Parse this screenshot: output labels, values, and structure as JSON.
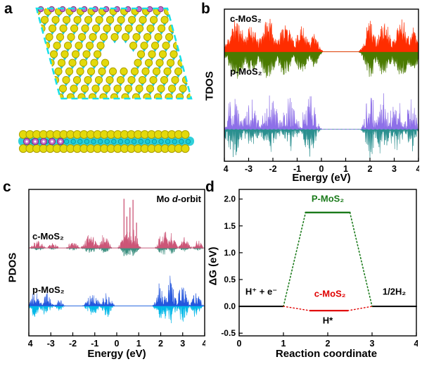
{
  "figure": {
    "panel_labels": {
      "a": "a",
      "b": "b",
      "c": "c",
      "d": "d"
    }
  },
  "structure": {
    "colors": {
      "sulfur": "#e3d90b",
      "sulfur_edge": "#ada000",
      "mo": "#19cbd6",
      "mo_edge": "#0a8a96",
      "dopant": "#c36bc9",
      "dopant_edge": "#7a2e7a",
      "highlight": "#19e0e8"
    }
  },
  "chart_data": [
    {
      "id": "tdos",
      "type": "area",
      "ylabel": "TDOS",
      "xlabel": "Energy (eV)",
      "xlim": [
        -4,
        4
      ],
      "xticks": [
        -4,
        -3,
        -2,
        -1,
        0,
        1,
        2,
        3,
        4
      ],
      "band_gap_eV": [
        0.1,
        1.8
      ],
      "series": [
        {
          "name": "c-MoS₂",
          "baseline_frac": 0.28,
          "up_color": "#ff2d00",
          "down_color": "#4a7a00",
          "up_amp": 52,
          "down_amp": 44,
          "floor": 0.3,
          "sparse": 1.3,
          "seed": 11,
          "baseline_dash": null,
          "clusters": [
            {
              "c": -3.5,
              "w": 0.55,
              "h": 0.9
            },
            {
              "c": -2.9,
              "w": 0.45,
              "h": 0.75
            },
            {
              "c": -2.2,
              "w": 0.5,
              "h": 0.95
            },
            {
              "c": -1.5,
              "w": 0.5,
              "h": 0.8
            },
            {
              "c": -0.8,
              "w": 0.45,
              "h": 0.7
            },
            {
              "c": -0.3,
              "w": 0.3,
              "h": 0.5
            },
            {
              "c": 2.0,
              "w": 0.35,
              "h": 0.9
            },
            {
              "c": 2.6,
              "w": 0.45,
              "h": 0.85
            },
            {
              "c": 3.3,
              "w": 0.5,
              "h": 0.9
            },
            {
              "c": 3.8,
              "w": 0.3,
              "h": 0.7
            }
          ]
        },
        {
          "name": "p-MoS₂",
          "baseline_frac": 0.79,
          "up_color": "#8d6fe8",
          "down_color": "#2a8f8f",
          "up_amp": 62,
          "down_amp": 42,
          "floor": 0.07,
          "sparse": 2.6,
          "seed": 29,
          "baseline_dash": "3,3",
          "clusters": [
            {
              "c": -3.6,
              "w": 0.5,
              "h": 0.95
            },
            {
              "c": -2.9,
              "w": 0.45,
              "h": 0.7
            },
            {
              "c": -2.1,
              "w": 0.5,
              "h": 0.8
            },
            {
              "c": -1.3,
              "w": 0.45,
              "h": 0.75
            },
            {
              "c": -0.5,
              "w": 0.4,
              "h": 0.95
            },
            {
              "c": 2.0,
              "w": 0.3,
              "h": 1.0
            },
            {
              "c": 2.5,
              "w": 0.4,
              "h": 0.9
            },
            {
              "c": 3.1,
              "w": 0.45,
              "h": 0.85
            },
            {
              "c": 3.7,
              "w": 0.3,
              "h": 0.8
            }
          ]
        }
      ]
    },
    {
      "id": "pdos",
      "type": "area",
      "ylabel": "PDOS",
      "xlabel": "Energy (eV)",
      "title_parts": {
        "prefix": "Mo ",
        "italic": "d",
        "suffix": "-orbit"
      },
      "xlim": [
        -4,
        4
      ],
      "xticks": [
        -4,
        -3,
        -2,
        -1,
        0,
        1,
        2,
        3,
        4
      ],
      "series": [
        {
          "name": "c-MoS₂",
          "baseline_frac": 0.4,
          "up_color": "#cc5577",
          "down_color": "#3d9080",
          "up_amp": 72,
          "down_amp": 26,
          "floor": 0.15,
          "sparse": 2.0,
          "seed": 7,
          "baseline_dash": null,
          "clusters": [
            {
              "c": -3.6,
              "w": 0.4,
              "h": 0.15
            },
            {
              "c": -2.9,
              "w": 0.3,
              "h": 0.1
            },
            {
              "c": -2.0,
              "w": 0.35,
              "h": 0.14
            },
            {
              "c": -1.2,
              "w": 0.4,
              "h": 0.3
            },
            {
              "c": -0.55,
              "w": 0.3,
              "h": 0.32
            },
            {
              "c": 0.45,
              "w": 0.35,
              "h": 0.45
            },
            {
              "c": 0.8,
              "w": 0.25,
              "h": 0.4
            },
            {
              "c": 2.1,
              "w": 0.3,
              "h": 0.45
            },
            {
              "c": 2.5,
              "w": 0.25,
              "h": 0.35
            },
            {
              "c": 3.1,
              "w": 0.3,
              "h": 0.22
            },
            {
              "c": 3.7,
              "w": 0.25,
              "h": 0.18
            }
          ],
          "spikes": [
            [
              0.33,
              0.97
            ],
            [
              0.46,
              0.62
            ],
            [
              0.6,
              0.8
            ],
            [
              0.74,
              0.95
            ],
            [
              0.9,
              0.5
            ]
          ]
        },
        {
          "name": "p-MoS₂",
          "baseline_frac": 0.795,
          "up_color": "#2255dd",
          "down_color": "#00b8e8",
          "up_amp": 46,
          "down_amp": 36,
          "floor": 0.08,
          "sparse": 2.4,
          "seed": 41,
          "baseline_dash": null,
          "clusters": [
            {
              "c": -3.7,
              "w": 0.3,
              "h": 0.6
            },
            {
              "c": -3.2,
              "w": 0.3,
              "h": 0.45
            },
            {
              "c": -2.6,
              "w": 0.25,
              "h": 0.2
            },
            {
              "c": -1.1,
              "w": 0.4,
              "h": 0.4
            },
            {
              "c": -0.45,
              "w": 0.3,
              "h": 0.5
            },
            {
              "c": 1.95,
              "w": 0.25,
              "h": 0.75
            },
            {
              "c": 2.4,
              "w": 0.35,
              "h": 0.95
            },
            {
              "c": 3.0,
              "w": 0.35,
              "h": 0.7
            },
            {
              "c": 3.6,
              "w": 0.3,
              "h": 0.55
            }
          ]
        }
      ]
    },
    {
      "id": "free_energy",
      "type": "line",
      "ylabel": "ΔG (eV)",
      "xlabel": "Reaction coordinate",
      "xlim": [
        0,
        4
      ],
      "ylim": [
        -0.55,
        2.18
      ],
      "xticks": [
        0,
        1,
        2,
        3,
        4
      ],
      "yticks": [
        {
          "v": -0.5,
          "l": "-0.5"
        },
        {
          "v": 0,
          "l": "0.0"
        },
        {
          "v": 0.5,
          "l": "0.5"
        },
        {
          "v": 1,
          "l": "1.0"
        },
        {
          "v": 1.5,
          "l": "1.5"
        },
        {
          "v": 2,
          "l": "2.0"
        }
      ],
      "segments": [
        {
          "pts": [
            [
              0,
              0
            ],
            [
              1,
              0
            ]
          ],
          "color": "#000000",
          "w": 2,
          "dash": null
        },
        {
          "pts": [
            [
              3,
              0
            ],
            [
              4,
              0
            ]
          ],
          "color": "#000000",
          "w": 2,
          "dash": null
        },
        {
          "pts": [
            [
              1,
              0
            ],
            [
              1.5,
              1.75
            ]
          ],
          "color": "#1a7a1a",
          "w": 1.6,
          "dash": "1.5,3.2"
        },
        {
          "pts": [
            [
              2.5,
              1.75
            ],
            [
              3,
              0
            ]
          ],
          "color": "#1a7a1a",
          "w": 1.6,
          "dash": "1.5,3.2"
        },
        {
          "pts": [
            [
              1.5,
              1.75
            ],
            [
              2.5,
              1.75
            ]
          ],
          "color": "#1a7a1a",
          "w": 2.4,
          "dash": null
        },
        {
          "pts": [
            [
              1,
              0
            ],
            [
              1.6,
              -0.08
            ]
          ],
          "color": "#e00000",
          "w": 1.4,
          "dash": "1.5,3.2"
        },
        {
          "pts": [
            [
              2.45,
              -0.08
            ],
            [
              3,
              0
            ]
          ],
          "color": "#e00000",
          "w": 1.4,
          "dash": "1.5,3.2"
        },
        {
          "pts": [
            [
              1.6,
              -0.08
            ],
            [
              2.45,
              -0.08
            ]
          ],
          "color": "#e00000",
          "w": 2.2,
          "dash": null
        }
      ],
      "annotations": [
        {
          "x": 0.5,
          "y": 0.22,
          "text": "H⁺ + e⁻",
          "color": "#000000"
        },
        {
          "x": 3.5,
          "y": 0.22,
          "text": "1/2H₂",
          "color": "#000000"
        },
        {
          "x": 2.0,
          "y": 1.95,
          "text": "P-MoS₂",
          "color": "#1a7a1a"
        },
        {
          "x": 2.05,
          "y": 0.18,
          "text": "c-MoS₂",
          "color": "#e00000"
        },
        {
          "x": 2.0,
          "y": -0.32,
          "text": "H*",
          "color": "#000000"
        }
      ]
    }
  ]
}
